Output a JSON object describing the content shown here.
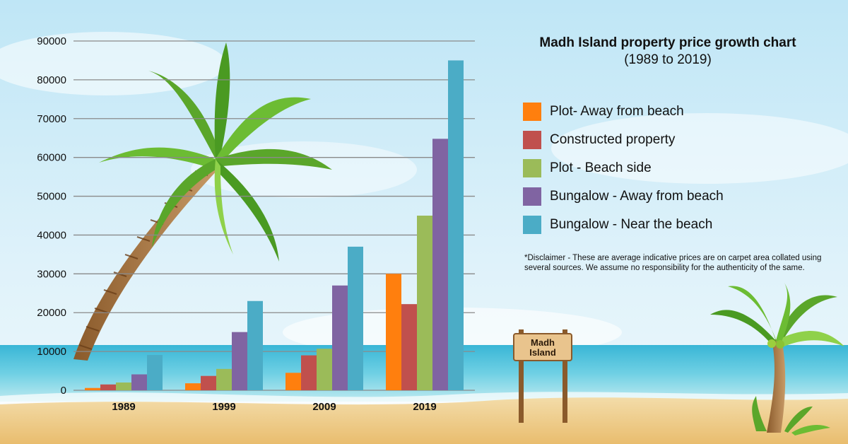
{
  "chart_data": {
    "type": "bar",
    "title": "Madh Island property price growth chart",
    "subtitle": "(1989 to 2019)",
    "categories": [
      "1989",
      "1999",
      "2009",
      "2019"
    ],
    "ylim": [
      0,
      90000
    ],
    "yticks": [
      "0",
      "10000",
      "20000",
      "30000",
      "40000",
      "50000",
      "60000",
      "70000",
      "80000",
      "90000"
    ],
    "grid": true,
    "legend_position": "right",
    "series": [
      {
        "name": "Plot- Away from beach",
        "color": "#FF7F0E",
        "values": [
          600,
          1800,
          4500,
          30000
        ]
      },
      {
        "name": "Constructed property",
        "color": "#C0504D",
        "values": [
          1500,
          3700,
          9000,
          22200
        ]
      },
      {
        "name": "Plot - Beach side",
        "color": "#9BBB59",
        "values": [
          2000,
          5500,
          10700,
          45000
        ]
      },
      {
        "name": "Bungalow - Away from beach",
        "color": "#8064A2",
        "values": [
          4100,
          15000,
          27000,
          64800
        ]
      },
      {
        "name": "Bungalow - Near the beach",
        "color": "#4BACC6",
        "values": [
          9100,
          23000,
          37000,
          85000
        ]
      }
    ]
  },
  "disclaimer": "*Disclaimer - These are average indicative prices are on carpet area collated using several sources. We assume no responsibility for the authenticity of the same.",
  "sign": {
    "line1": "Madh",
    "line2": "Island"
  },
  "decor": {
    "left_tree": "palm-tree-icon",
    "right_tree": "coconut-palm-icon"
  }
}
